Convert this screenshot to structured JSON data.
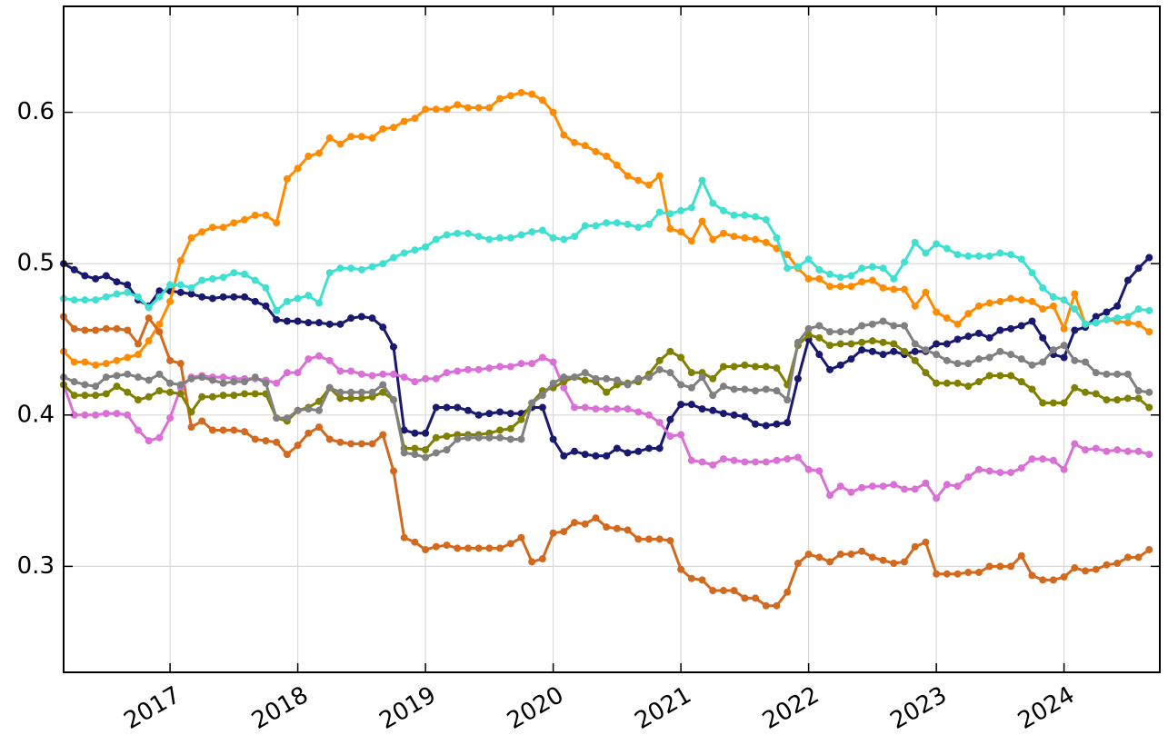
{
  "chart_data": {
    "type": "line",
    "x": [
      "2016-03",
      "2016-04",
      "2016-05",
      "2016-06",
      "2016-07",
      "2016-08",
      "2016-09",
      "2016-10",
      "2016-11",
      "2016-12",
      "2017-01",
      "2017-02",
      "2017-03",
      "2017-04",
      "2017-05",
      "2017-06",
      "2017-07",
      "2017-08",
      "2017-09",
      "2017-10",
      "2017-11",
      "2017-12",
      "2018-01",
      "2018-02",
      "2018-03",
      "2018-04",
      "2018-05",
      "2018-06",
      "2018-07",
      "2018-08",
      "2018-09",
      "2018-10",
      "2018-11",
      "2018-12",
      "2019-01",
      "2019-02",
      "2019-03",
      "2019-04",
      "2019-05",
      "2019-06",
      "2019-07",
      "2019-08",
      "2019-09",
      "2019-10",
      "2019-11",
      "2019-12",
      "2020-01",
      "2020-02",
      "2020-03",
      "2020-04",
      "2020-05",
      "2020-06",
      "2020-07",
      "2020-08",
      "2020-09",
      "2020-10",
      "2020-11",
      "2020-12",
      "2021-01",
      "2021-02",
      "2021-03",
      "2021-04",
      "2021-05",
      "2021-06",
      "2021-07",
      "2021-08",
      "2021-09",
      "2021-10",
      "2021-11",
      "2021-12",
      "2022-01",
      "2022-02",
      "2022-03",
      "2022-04",
      "2022-05",
      "2022-06",
      "2022-07",
      "2022-08",
      "2022-09",
      "2022-10",
      "2022-11",
      "2022-12",
      "2023-01",
      "2023-02",
      "2023-03",
      "2023-04",
      "2023-05",
      "2023-06",
      "2023-07",
      "2023-08",
      "2023-09",
      "2023-10",
      "2023-11",
      "2023-12",
      "2024-01",
      "2024-02",
      "2024-03",
      "2024-04",
      "2024-05",
      "2024-06",
      "2024-07",
      "2024-08",
      "2024-09"
    ],
    "series": [
      {
        "color": "#191970",
        "values": [
          0.5,
          0.496,
          0.492,
          0.49,
          0.492,
          0.488,
          0.486,
          0.476,
          0.472,
          0.482,
          0.482,
          0.481,
          0.48,
          0.478,
          0.477,
          0.478,
          0.478,
          0.478,
          0.475,
          0.472,
          0.463,
          0.462,
          0.462,
          0.461,
          0.461,
          0.46,
          0.46,
          0.464,
          0.465,
          0.464,
          0.458,
          0.445,
          0.39,
          0.388,
          0.388,
          0.405,
          0.405,
          0.405,
          0.403,
          0.4,
          0.401,
          0.402,
          0.401,
          0.401,
          0.405,
          0.405,
          0.384,
          0.373,
          0.376,
          0.374,
          0.373,
          0.373,
          0.378,
          0.375,
          0.376,
          0.378,
          0.378,
          0.397,
          0.407,
          0.407,
          0.404,
          0.403,
          0.401,
          0.4,
          0.399,
          0.394,
          0.393,
          0.394,
          0.395,
          0.424,
          0.45,
          0.44,
          0.43,
          0.433,
          0.437,
          0.443,
          0.442,
          0.44,
          0.442,
          0.44,
          0.442,
          0.442,
          0.447,
          0.447,
          0.45,
          0.452,
          0.454,
          0.451,
          0.456,
          0.457,
          0.459,
          0.462,
          0.451,
          0.44,
          0.438,
          0.456,
          0.458,
          0.465,
          0.468,
          0.472,
          0.489,
          0.497,
          0.504
        ]
      },
      {
        "color": "#ff8c00",
        "values": [
          0.442,
          0.435,
          0.435,
          0.433,
          0.434,
          0.436,
          0.438,
          0.44,
          0.449,
          0.46,
          0.475,
          0.502,
          0.517,
          0.521,
          0.524,
          0.524,
          0.527,
          0.529,
          0.532,
          0.532,
          0.527,
          0.556,
          0.563,
          0.571,
          0.573,
          0.583,
          0.579,
          0.584,
          0.584,
          0.583,
          0.589,
          0.59,
          0.594,
          0.596,
          0.602,
          0.602,
          0.602,
          0.605,
          0.603,
          0.603,
          0.603,
          0.609,
          0.611,
          0.613,
          0.612,
          0.608,
          0.6,
          0.585,
          0.58,
          0.578,
          0.574,
          0.571,
          0.565,
          0.558,
          0.555,
          0.552,
          0.558,
          0.523,
          0.521,
          0.515,
          0.528,
          0.516,
          0.52,
          0.518,
          0.517,
          0.516,
          0.514,
          0.51,
          0.506,
          0.497,
          0.49,
          0.49,
          0.485,
          0.485,
          0.485,
          0.488,
          0.489,
          0.484,
          0.483,
          0.483,
          0.472,
          0.481,
          0.468,
          0.464,
          0.46,
          0.467,
          0.472,
          0.474,
          0.475,
          0.477,
          0.476,
          0.475,
          0.47,
          0.472,
          0.457,
          0.48,
          0.46,
          0.461,
          0.463,
          0.462,
          0.461,
          0.46,
          0.455
        ]
      },
      {
        "color": "#40e0d0",
        "values": [
          0.477,
          0.476,
          0.476,
          0.476,
          0.478,
          0.48,
          0.481,
          0.478,
          0.471,
          0.478,
          0.486,
          0.486,
          0.484,
          0.489,
          0.49,
          0.491,
          0.494,
          0.493,
          0.489,
          0.484,
          0.469,
          0.475,
          0.477,
          0.479,
          0.474,
          0.494,
          0.497,
          0.497,
          0.496,
          0.498,
          0.5,
          0.504,
          0.507,
          0.509,
          0.511,
          0.516,
          0.519,
          0.52,
          0.52,
          0.518,
          0.516,
          0.517,
          0.517,
          0.519,
          0.521,
          0.522,
          0.517,
          0.516,
          0.518,
          0.525,
          0.525,
          0.527,
          0.527,
          0.526,
          0.524,
          0.526,
          0.534,
          0.533,
          0.535,
          0.537,
          0.555,
          0.54,
          0.535,
          0.532,
          0.532,
          0.531,
          0.529,
          0.517,
          0.497,
          0.498,
          0.503,
          0.496,
          0.493,
          0.491,
          0.492,
          0.497,
          0.498,
          0.497,
          0.49,
          0.501,
          0.514,
          0.507,
          0.513,
          0.51,
          0.506,
          0.505,
          0.505,
          0.505,
          0.507,
          0.506,
          0.503,
          0.494,
          0.484,
          0.478,
          0.476,
          0.47,
          0.46,
          0.461,
          0.463,
          0.464,
          0.465,
          0.47,
          0.469
        ]
      },
      {
        "color": "#d2691e",
        "values": [
          0.465,
          0.457,
          0.456,
          0.456,
          0.457,
          0.457,
          0.456,
          0.447,
          0.464,
          0.455,
          0.436,
          0.434,
          0.392,
          0.396,
          0.39,
          0.39,
          0.39,
          0.389,
          0.384,
          0.383,
          0.382,
          0.374,
          0.38,
          0.388,
          0.392,
          0.384,
          0.382,
          0.381,
          0.381,
          0.381,
          0.387,
          0.363,
          0.319,
          0.316,
          0.311,
          0.313,
          0.314,
          0.312,
          0.312,
          0.312,
          0.312,
          0.312,
          0.315,
          0.319,
          0.303,
          0.305,
          0.322,
          0.323,
          0.329,
          0.328,
          0.332,
          0.326,
          0.325,
          0.324,
          0.318,
          0.318,
          0.318,
          0.317,
          0.298,
          0.292,
          0.291,
          0.284,
          0.284,
          0.284,
          0.279,
          0.279,
          0.274,
          0.274,
          0.283,
          0.302,
          0.308,
          0.306,
          0.303,
          0.308,
          0.308,
          0.31,
          0.306,
          0.304,
          0.302,
          0.303,
          0.313,
          0.316,
          0.295,
          0.295,
          0.295,
          0.296,
          0.296,
          0.3,
          0.3,
          0.3,
          0.307,
          0.294,
          0.291,
          0.291,
          0.293,
          0.299,
          0.297,
          0.298,
          0.301,
          0.302,
          0.306,
          0.306,
          0.311
        ]
      },
      {
        "color": "#da70d6",
        "values": [
          0.42,
          0.4,
          0.4,
          0.4,
          0.401,
          0.401,
          0.4,
          0.39,
          0.383,
          0.385,
          0.398,
          0.418,
          0.425,
          0.426,
          0.425,
          0.425,
          0.424,
          0.424,
          0.424,
          0.423,
          0.421,
          0.428,
          0.428,
          0.437,
          0.439,
          0.436,
          0.429,
          0.429,
          0.427,
          0.426,
          0.427,
          0.427,
          0.425,
          0.422,
          0.424,
          0.424,
          0.428,
          0.429,
          0.43,
          0.43,
          0.431,
          0.432,
          0.432,
          0.434,
          0.434,
          0.438,
          0.435,
          0.418,
          0.405,
          0.405,
          0.404,
          0.404,
          0.404,
          0.404,
          0.402,
          0.4,
          0.395,
          0.386,
          0.387,
          0.37,
          0.369,
          0.367,
          0.371,
          0.37,
          0.369,
          0.369,
          0.369,
          0.37,
          0.371,
          0.372,
          0.364,
          0.363,
          0.347,
          0.353,
          0.349,
          0.352,
          0.353,
          0.353,
          0.354,
          0.351,
          0.351,
          0.355,
          0.345,
          0.354,
          0.353,
          0.359,
          0.364,
          0.363,
          0.362,
          0.362,
          0.365,
          0.371,
          0.371,
          0.37,
          0.364,
          0.381,
          0.377,
          0.378,
          0.376,
          0.377,
          0.376,
          0.376,
          0.374
        ]
      },
      {
        "color": "#808000",
        "values": [
          0.42,
          0.413,
          0.413,
          0.413,
          0.414,
          0.419,
          0.415,
          0.41,
          0.412,
          0.416,
          0.415,
          0.414,
          0.402,
          0.412,
          0.412,
          0.413,
          0.413,
          0.414,
          0.414,
          0.414,
          0.398,
          0.396,
          0.403,
          0.405,
          0.409,
          0.418,
          0.411,
          0.411,
          0.411,
          0.412,
          0.415,
          0.41,
          0.378,
          0.378,
          0.377,
          0.385,
          0.386,
          0.387,
          0.387,
          0.387,
          0.388,
          0.39,
          0.391,
          0.397,
          0.408,
          0.416,
          0.418,
          0.422,
          0.425,
          0.423,
          0.422,
          0.415,
          0.42,
          0.421,
          0.422,
          0.427,
          0.436,
          0.442,
          0.438,
          0.428,
          0.428,
          0.424,
          0.432,
          0.432,
          0.433,
          0.432,
          0.432,
          0.431,
          0.42,
          0.446,
          0.453,
          0.451,
          0.446,
          0.447,
          0.447,
          0.448,
          0.449,
          0.448,
          0.447,
          0.442,
          0.436,
          0.428,
          0.421,
          0.421,
          0.421,
          0.419,
          0.422,
          0.426,
          0.426,
          0.426,
          0.422,
          0.417,
          0.408,
          0.408,
          0.408,
          0.418,
          0.415,
          0.414,
          0.41,
          0.41,
          0.411,
          0.411,
          0.405
        ]
      },
      {
        "color": "#808080",
        "values": [
          0.425,
          0.422,
          0.42,
          0.419,
          0.425,
          0.426,
          0.427,
          0.425,
          0.423,
          0.427,
          0.421,
          0.42,
          0.424,
          0.425,
          0.423,
          0.421,
          0.422,
          0.422,
          0.425,
          0.421,
          0.398,
          0.398,
          0.403,
          0.404,
          0.403,
          0.418,
          0.415,
          0.415,
          0.415,
          0.415,
          0.42,
          0.41,
          0.375,
          0.374,
          0.372,
          0.375,
          0.377,
          0.384,
          0.385,
          0.385,
          0.385,
          0.385,
          0.384,
          0.384,
          0.408,
          0.413,
          0.421,
          0.425,
          0.425,
          0.428,
          0.424,
          0.424,
          0.423,
          0.42,
          0.424,
          0.425,
          0.43,
          0.428,
          0.42,
          0.418,
          0.425,
          0.413,
          0.419,
          0.417,
          0.417,
          0.416,
          0.417,
          0.416,
          0.41,
          0.448,
          0.457,
          0.459,
          0.455,
          0.455,
          0.455,
          0.459,
          0.46,
          0.462,
          0.459,
          0.459,
          0.447,
          0.443,
          0.44,
          0.436,
          0.434,
          0.434,
          0.437,
          0.438,
          0.442,
          0.44,
          0.437,
          0.433,
          0.435,
          0.443,
          0.446,
          0.436,
          0.435,
          0.428,
          0.427,
          0.427,
          0.427,
          0.416,
          0.415
        ]
      }
    ],
    "xlim": [
      "2016-03",
      "2024-10"
    ],
    "xticks": [
      "2017",
      "2018",
      "2019",
      "2020",
      "2021",
      "2022",
      "2023",
      "2024"
    ],
    "ylim": [
      0.23,
      0.67
    ],
    "yticks": [
      0.3,
      0.4,
      0.5,
      0.6
    ],
    "grid": true
  }
}
